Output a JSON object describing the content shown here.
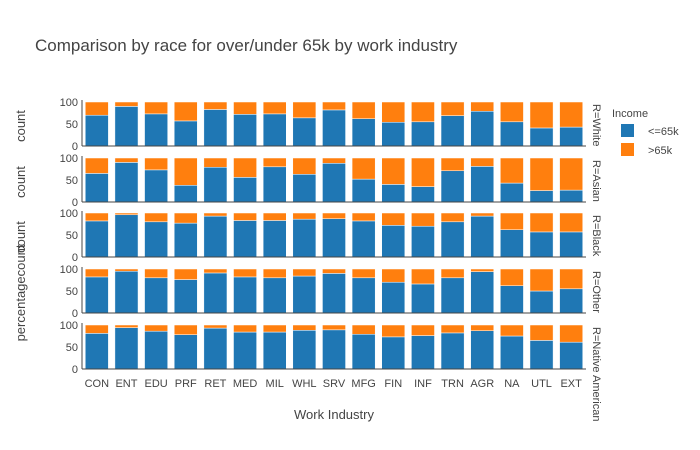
{
  "chart_data": {
    "type": "bar",
    "barmode": "stack",
    "title": "Comparison by race for over/under 65k by work industry",
    "xlabel": "Work Industry",
    "ylabels": [
      "count",
      "count",
      "count",
      "percentagecount",
      ""
    ],
    "ylim": [
      0,
      100
    ],
    "yticks": [
      0,
      50,
      100
    ],
    "legend_title": "Income",
    "legend_position": "right",
    "categories": [
      "CON",
      "ENT",
      "EDU",
      "PRF",
      "RET",
      "MED",
      "MIL",
      "WHL",
      "SRV",
      "MFG",
      "FIN",
      "INF",
      "TRN",
      "AGR",
      "NA",
      "UTL",
      "EXT"
    ],
    "series_meta": [
      {
        "name": "<=65k",
        "color": "#1f77b4"
      },
      {
        "name": ">65k",
        "color": "#ff7f0e"
      }
    ],
    "facets": [
      {
        "label": "R=White",
        "series": [
          {
            "name": "<=65k",
            "values": [
              70,
              90,
              73,
              57,
              83,
              72,
              73,
              64,
              82,
              62,
              54,
              55,
              69,
              79,
              55,
              41,
              43
            ]
          },
          {
            "name": ">65k",
            "values": [
              30,
              10,
              27,
              43,
              17,
              28,
              27,
              36,
              18,
              38,
              46,
              45,
              31,
              21,
              45,
              59,
              57
            ]
          }
        ]
      },
      {
        "label": "R=Asian",
        "series": [
          {
            "name": "<=65k",
            "values": [
              65,
              90,
              73,
              38,
              79,
              56,
              80,
              63,
              88,
              52,
              40,
              35,
              71,
              81,
              43,
              26,
              27
            ]
          },
          {
            "name": ">65k",
            "values": [
              35,
              10,
              27,
              62,
              21,
              44,
              20,
              37,
              12,
              48,
              60,
              65,
              29,
              19,
              57,
              74,
              73
            ]
          }
        ]
      },
      {
        "label": "R=Black",
        "series": [
          {
            "name": "<=65k",
            "values": [
              82,
              96,
              80,
              77,
              93,
              83,
              83,
              86,
              87,
              82,
              72,
              70,
              80,
              93,
              62,
              57,
              57
            ]
          },
          {
            "name": ">65k",
            "values": [
              18,
              4,
              20,
              23,
              7,
              17,
              17,
              14,
              13,
              18,
              28,
              30,
              20,
              7,
              38,
              43,
              43
            ]
          }
        ]
      },
      {
        "label": "R=Other",
        "series": [
          {
            "name": "<=65k",
            "values": [
              82,
              95,
              80,
              76,
              91,
              82,
              80,
              84,
              90,
              80,
              70,
              66,
              80,
              94,
              62,
              50,
              55
            ]
          },
          {
            "name": ">65k",
            "values": [
              18,
              5,
              20,
              24,
              9,
              18,
              20,
              16,
              10,
              20,
              30,
              34,
              20,
              6,
              38,
              50,
              45
            ]
          }
        ]
      },
      {
        "label": "R=Native American",
        "series": [
          {
            "name": "<=65k",
            "values": [
              81,
              94,
              86,
              78,
              93,
              84,
              84,
              88,
              89,
              79,
              73,
              76,
              82,
              87,
              75,
              65,
              61
            ]
          },
          {
            "name": ">65k",
            "values": [
              19,
              6,
              14,
              22,
              7,
              16,
              16,
              12,
              11,
              21,
              27,
              24,
              18,
              13,
              25,
              35,
              39
            ]
          }
        ]
      }
    ]
  }
}
